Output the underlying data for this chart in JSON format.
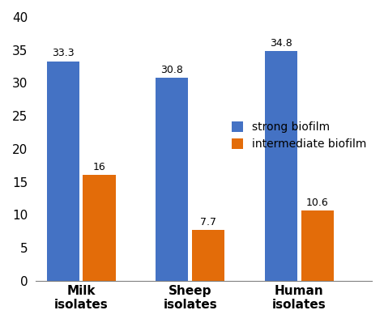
{
  "categories": [
    "Milk\nisolates",
    "Sheep\nisolates",
    "Human\nisolates"
  ],
  "strong_biofilm": [
    33.3,
    30.8,
    34.8
  ],
  "intermediate_biofilm": [
    16,
    7.7,
    10.6
  ],
  "strong_color": "#4472C4",
  "intermediate_color": "#E36C09",
  "legend_labels": [
    "strong biofilm",
    "intermediate biofilm"
  ],
  "ylim": [
    0,
    40
  ],
  "yticks": [
    0,
    5,
    10,
    15,
    20,
    25,
    30,
    35,
    40
  ],
  "bar_width": 0.18,
  "tick_fontsize": 11,
  "legend_fontsize": 10,
  "value_fontsize": 9
}
